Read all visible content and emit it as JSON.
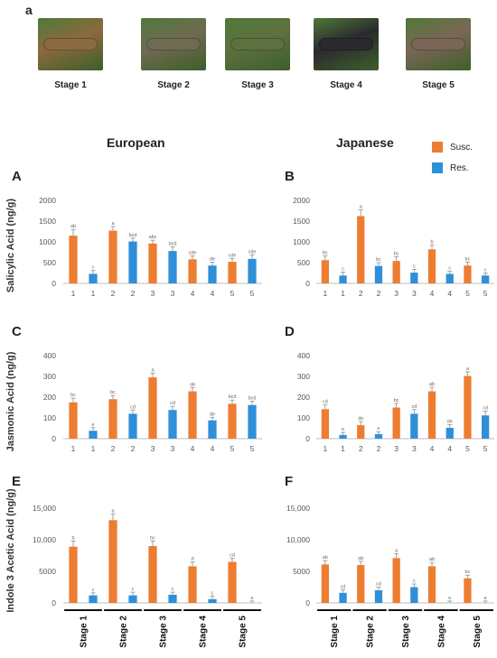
{
  "figure_letter": "a",
  "stages": [
    {
      "label": "Stage 1",
      "photo_color": "#8a6a3e"
    },
    {
      "label": "Stage 2",
      "photo_color": "#6f6a52"
    },
    {
      "label": "Stage 3",
      "photo_color": "#5d7040"
    },
    {
      "label": "Stage 4",
      "photo_color": "#2a2a2e"
    },
    {
      "label": "Stage 5",
      "photo_color": "#7a6656"
    }
  ],
  "columns": {
    "left": "European",
    "right": "Japanese"
  },
  "legend": [
    {
      "label": "Susc.",
      "color": "#ed7d31"
    },
    {
      "label": "Res.",
      "color": "#2f8fd8"
    }
  ],
  "row_labels": [
    "Salicylic Acid (ng/g)",
    "Jasmonic Acid (ng/g)",
    "Indole 3 Acetic Acid (ng/g)"
  ],
  "colors": {
    "susc": "#ed7d31",
    "res": "#2f8fd8",
    "axis": "#bfbfbf",
    "text": "#595959"
  },
  "chart_data": [
    {
      "panel": "A",
      "type": "bar",
      "ylabel": "Salicylic Acid (ng/g)",
      "ylim": [
        0,
        2000
      ],
      "yticks": [
        "0",
        "500",
        "1000",
        "1500",
        "2000"
      ],
      "categories": [
        "1",
        "1",
        "2",
        "2",
        "3",
        "3",
        "4",
        "4",
        "5",
        "5"
      ],
      "values": [
        1150,
        230,
        1270,
        1010,
        960,
        780,
        580,
        430,
        520,
        590
      ],
      "errors": [
        150,
        80,
        100,
        80,
        80,
        100,
        80,
        80,
        80,
        100
      ],
      "series_index": [
        0,
        1,
        0,
        1,
        0,
        1,
        0,
        1,
        0,
        1
      ],
      "labels": [
        "ab",
        "c",
        "a",
        "bcd",
        "abc",
        "bcd",
        "cde",
        "de",
        "cde",
        "cde"
      ]
    },
    {
      "panel": "B",
      "type": "bar",
      "ylabel": "",
      "ylim": [
        0,
        2000
      ],
      "yticks": [
        "0",
        "500",
        "1000",
        "1500",
        "2000"
      ],
      "categories": [
        "1",
        "1",
        "2",
        "2",
        "3",
        "3",
        "4",
        "4",
        "5",
        "5"
      ],
      "values": [
        560,
        190,
        1620,
        420,
        540,
        260,
        820,
        230,
        430,
        190
      ],
      "errors": [
        100,
        80,
        150,
        80,
        100,
        80,
        100,
        60,
        80,
        60
      ],
      "series_index": [
        0,
        1,
        0,
        1,
        0,
        1,
        0,
        1,
        0,
        1
      ],
      "labels": [
        "bc",
        "c",
        "a",
        "bc",
        "bc",
        "c",
        "b",
        "c",
        "bc",
        "c"
      ]
    },
    {
      "panel": "C",
      "type": "bar",
      "ylabel": "Jasmonic Acid (ng/g)",
      "ylim": [
        0,
        400
      ],
      "yticks": [
        "0",
        "100",
        "200",
        "300",
        "400"
      ],
      "categories": [
        "1",
        "1",
        "2",
        "2",
        "3",
        "3",
        "4",
        "4",
        "5",
        "5"
      ],
      "values": [
        175,
        38,
        190,
        120,
        295,
        138,
        228,
        88,
        168,
        162
      ],
      "errors": [
        20,
        15,
        18,
        18,
        20,
        18,
        18,
        15,
        18,
        18
      ],
      "series_index": [
        0,
        1,
        0,
        1,
        0,
        1,
        0,
        1,
        0,
        1
      ],
      "labels": [
        "bc",
        "e",
        "bc",
        "cd",
        "a",
        "cd",
        "ab",
        "de",
        "bcd",
        "bcd"
      ]
    },
    {
      "panel": "D",
      "type": "bar",
      "ylabel": "",
      "ylim": [
        0,
        400
      ],
      "yticks": [
        "0",
        "100",
        "200",
        "300",
        "400"
      ],
      "categories": [
        "1",
        "1",
        "2",
        "2",
        "3",
        "3",
        "4",
        "4",
        "5",
        "5"
      ],
      "values": [
        142,
        18,
        65,
        22,
        150,
        120,
        228,
        52,
        302,
        112
      ],
      "errors": [
        20,
        12,
        18,
        10,
        20,
        20,
        20,
        15,
        20,
        20
      ],
      "series_index": [
        0,
        1,
        0,
        1,
        0,
        1,
        0,
        1,
        0,
        1
      ],
      "labels": [
        "cd",
        "e",
        "de",
        "e",
        "bc",
        "cd",
        "ab",
        "de",
        "a",
        "cd"
      ]
    },
    {
      "panel": "E",
      "type": "bar",
      "ylabel": "Indole 3 Acetic Acid (ng/g)",
      "ylim": [
        0,
        15000
      ],
      "yticks": [
        "0",
        "5000",
        "10,000",
        "15,000"
      ],
      "categories": [
        "Stage 1",
        "Stage 2",
        "Stage 3",
        "Stage 4",
        "Stage 5"
      ],
      "values": [
        8900,
        1200,
        13100,
        1200,
        9000,
        1300,
        5800,
        600,
        6500,
        0
      ],
      "errors": [
        900,
        400,
        1000,
        500,
        800,
        400,
        700,
        500,
        600,
        300
      ],
      "series_index": [
        0,
        1,
        0,
        1,
        0,
        1,
        0,
        1,
        0,
        1
      ],
      "labels": [
        "b",
        "c",
        "a",
        "c",
        "bc",
        "c",
        "d",
        "c",
        "cd",
        "e"
      ]
    },
    {
      "panel": "F",
      "type": "bar",
      "ylabel": "",
      "ylim": [
        0,
        15000
      ],
      "yticks": [
        "0",
        "5000",
        "10,000",
        "15,000"
      ],
      "categories": [
        "Stage 1",
        "Stage 2",
        "Stage 3",
        "Stage 4",
        "Stage 5"
      ],
      "values": [
        6100,
        1600,
        6000,
        2000,
        7100,
        2500,
        5800,
        0,
        3900,
        0
      ],
      "errors": [
        600,
        500,
        600,
        500,
        700,
        500,
        600,
        300,
        500,
        300
      ],
      "series_index": [
        0,
        1,
        0,
        1,
        0,
        1,
        0,
        1,
        0,
        1
      ],
      "labels": [
        "ab",
        "cd",
        "ab",
        "cd",
        "a",
        "c",
        "ab",
        "e",
        "bc",
        "e"
      ]
    }
  ]
}
